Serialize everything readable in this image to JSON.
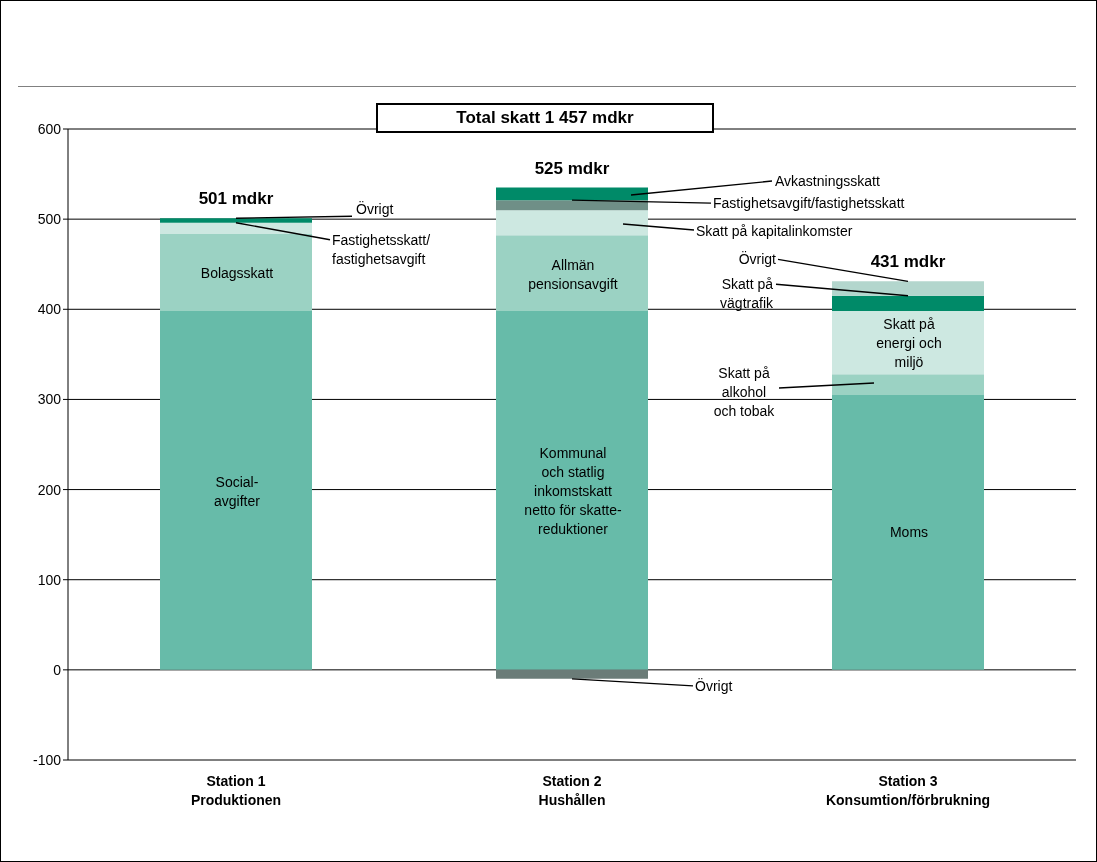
{
  "chart_data": {
    "type": "bar",
    "title": "Total skatt 1 457 mdkr",
    "stacked": true,
    "categories": [
      "Station 1\nProduktionen",
      "Station 2\nHushållen",
      "Station 3\nKonsumtion/förbrukning"
    ],
    "series": [
      {
        "color": "#67bba9",
        "values": [
          398,
          398,
          305
        ]
      },
      {
        "color": "#9bd2c3",
        "values": [
          86,
          84,
          23
        ]
      },
      {
        "color": "#cde8e1",
        "values": [
          12,
          28,
          70
        ]
      },
      {
        "colors": [
          "#008a68",
          "#6f8f87",
          "#008a68"
        ],
        "values": [
          5,
          11,
          17
        ]
      },
      {
        "colors": [
          "#008a68",
          "#008a68",
          "#b3d6cd"
        ],
        "values": [
          null,
          14,
          16
        ]
      },
      {
        "color": "#6b7c78",
        "values": [
          null,
          -10,
          null
        ]
      }
    ],
    "totals": [
      "501 mdkr",
      "525 mdkr",
      "431 mdkr"
    ],
    "ylim": [
      -100,
      600
    ],
    "yticks": [
      -100,
      0,
      100,
      200,
      300,
      400,
      500,
      600
    ],
    "grid": "y",
    "annotations": [
      "Social-\navgifter",
      "Bolagsskatt",
      {
        "text": "Fastighetsskatt/\nfastighetsavgift",
        "x": "Station 1\nProduktionen",
        "y": 496
      },
      {
        "text": "Övrigt",
        "x": "Station 1\nProduktionen",
        "y": 501
      },
      "Kommunal\noch statlig\ninkomstskatt\nnetto för skatte-\nreduktioner",
      "Allmän\npensionsavgift",
      "Skatt på kapitalinkomster",
      {
        "text": "Fastighetsavgift/fastighetsskatt",
        "x": "Station 2\nHushållen",
        "y": 521
      },
      "Avkastningsskatt",
      {
        "text": "Övrigt",
        "x": "Station 2\nHushållen",
        "y": -10
      },
      "Moms",
      "Skatt på\nalkohol\noch tobak",
      "Skatt på\nenergi och\nmiljö",
      {
        "text": "Skatt på\nvägtrafik",
        "x": "Station 3\nKonsumtion/förbrukning",
        "y": 415
      },
      {
        "text": "Övrigt",
        "x": "Station 3\nKonsumtion/förbrukning",
        "y": 431
      }
    ]
  }
}
